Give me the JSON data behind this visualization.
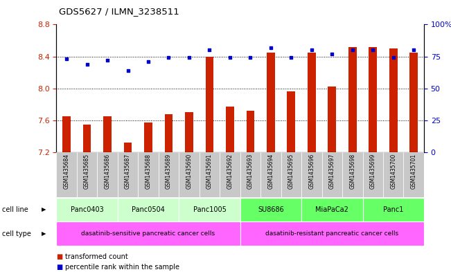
{
  "title": "GDS5627 / ILMN_3238511",
  "samples": [
    "GSM1435684",
    "GSM1435685",
    "GSM1435686",
    "GSM1435687",
    "GSM1435688",
    "GSM1435689",
    "GSM1435690",
    "GSM1435691",
    "GSM1435692",
    "GSM1435693",
    "GSM1435694",
    "GSM1435695",
    "GSM1435696",
    "GSM1435697",
    "GSM1435698",
    "GSM1435699",
    "GSM1435700",
    "GSM1435701"
  ],
  "bar_values": [
    7.65,
    7.55,
    7.65,
    7.32,
    7.57,
    7.68,
    7.7,
    8.4,
    7.77,
    7.72,
    8.45,
    7.96,
    8.45,
    8.02,
    8.52,
    8.52,
    8.5,
    8.45
  ],
  "dot_values": [
    73,
    69,
    72,
    64,
    71,
    74,
    74,
    80,
    74,
    74,
    82,
    74,
    80,
    77,
    80,
    80,
    74,
    80
  ],
  "ylim_left": [
    7.2,
    8.8
  ],
  "ylim_right": [
    0,
    100
  ],
  "yticks_left": [
    7.2,
    7.6,
    8.0,
    8.4,
    8.8
  ],
  "yticks_right": [
    0,
    25,
    50,
    75,
    100
  ],
  "bar_color": "#cc2200",
  "dot_color": "#0000cc",
  "cell_lines": [
    {
      "name": "Panc0403",
      "start": 0,
      "end": 2,
      "color": "#ccffcc"
    },
    {
      "name": "Panc0504",
      "start": 3,
      "end": 5,
      "color": "#ccffcc"
    },
    {
      "name": "Panc1005",
      "start": 6,
      "end": 8,
      "color": "#ccffcc"
    },
    {
      "name": "SU8686",
      "start": 9,
      "end": 11,
      "color": "#66ff66"
    },
    {
      "name": "MiaPaCa2",
      "start": 12,
      "end": 14,
      "color": "#66ff66"
    },
    {
      "name": "Panc1",
      "start": 15,
      "end": 17,
      "color": "#66ff66"
    }
  ],
  "cell_types": [
    {
      "name": "dasatinib-sensitive pancreatic cancer cells",
      "start": 0,
      "end": 8,
      "color": "#ff66ff"
    },
    {
      "name": "dasatinib-resistant pancreatic cancer cells",
      "start": 9,
      "end": 17,
      "color": "#ff66ff"
    }
  ],
  "background_color": "#ffffff",
  "tick_label_color_left": "#cc2200",
  "tick_label_color_right": "#0000cc",
  "sample_bg_color": "#c8c8c8",
  "bar_width": 0.4
}
